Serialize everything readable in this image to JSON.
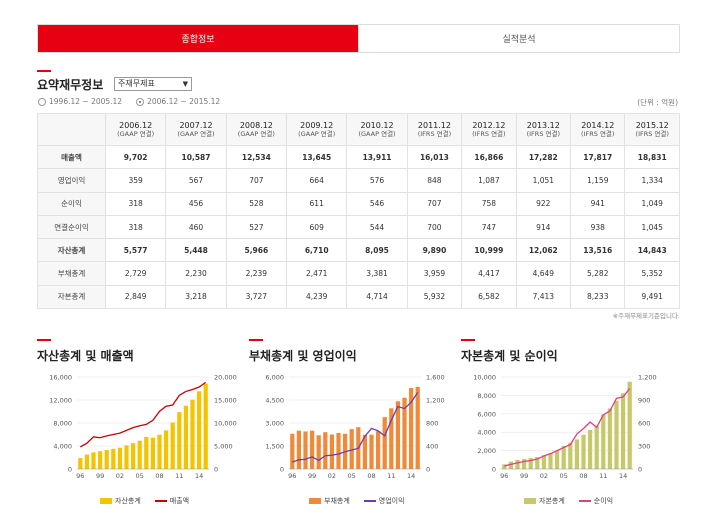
{
  "tabs": [
    {
      "label": "종합정보",
      "active": true
    },
    {
      "label": "실적분석",
      "active": false
    }
  ],
  "top_cut_text": "... ... ...",
  "summary": {
    "title": "요약재무정보",
    "select_value": "주재무제표",
    "radio_1": "1996.12 ~ 2005.12",
    "radio_2": "2006.12 ~ 2015.12",
    "radio_selected": 2,
    "unit": "(단위 : 억원)",
    "columns": [
      {
        "year": "2006.12",
        "std": "(GAAP 연결)"
      },
      {
        "year": "2007.12",
        "std": "(GAAP 연결)"
      },
      {
        "year": "2008.12",
        "std": "(GAAP 연결)"
      },
      {
        "year": "2009.12",
        "std": "(GAAP 연결)"
      },
      {
        "year": "2010.12",
        "std": "(GAAP 연결)"
      },
      {
        "year": "2011.12",
        "std": "(IFRS 연결)"
      },
      {
        "year": "2012.12",
        "std": "(IFRS 연결)"
      },
      {
        "year": "2013.12",
        "std": "(IFRS 연결)"
      },
      {
        "year": "2014.12",
        "std": "(IFRS 연결)"
      },
      {
        "year": "2015.12",
        "std": "(IFRS 연결)"
      }
    ],
    "rows": [
      {
        "label": "매출액",
        "bold": true,
        "values": [
          "9,702",
          "10,587",
          "12,534",
          "13,645",
          "13,911",
          "16,013",
          "16,866",
          "17,282",
          "17,817",
          "18,831"
        ]
      },
      {
        "label": "영업이익",
        "bold": false,
        "values": [
          "359",
          "567",
          "707",
          "664",
          "576",
          "848",
          "1,087",
          "1,051",
          "1,159",
          "1,334"
        ]
      },
      {
        "label": "순이익",
        "bold": false,
        "values": [
          "318",
          "456",
          "528",
          "611",
          "546",
          "707",
          "758",
          "922",
          "941",
          "1,049"
        ]
      },
      {
        "label": "연결순이익",
        "bold": false,
        "values": [
          "318",
          "460",
          "527",
          "609",
          "544",
          "700",
          "747",
          "914",
          "938",
          "1,045"
        ]
      },
      {
        "label": "자산총계",
        "bold": true,
        "values": [
          "5,577",
          "5,448",
          "5,966",
          "6,710",
          "8,095",
          "9,890",
          "10,999",
          "12,062",
          "13,516",
          "14,843"
        ]
      },
      {
        "label": "부채총계",
        "bold": false,
        "values": [
          "2,729",
          "2,230",
          "2,239",
          "2,471",
          "3,381",
          "3,959",
          "4,417",
          "4,649",
          "5,282",
          "5,352"
        ]
      },
      {
        "label": "자본총계",
        "bold": false,
        "values": [
          "2,849",
          "3,218",
          "3,727",
          "4,239",
          "4,714",
          "5,932",
          "6,582",
          "7,413",
          "8,233",
          "9,491"
        ]
      }
    ],
    "note": "※주재무제표기준입니다."
  },
  "chart_data": [
    {
      "type": "bar",
      "title": "자산총계 및 매출액",
      "x_ticks": [
        "96",
        "99",
        "02",
        "05",
        "08",
        "11",
        "14"
      ],
      "left_axis": {
        "ticks": [
          "0",
          "4,000",
          "8,000",
          "12,000",
          "16,000"
        ],
        "max": 16000
      },
      "right_axis": {
        "ticks": [
          "0",
          "5,000",
          "10,000",
          "15,000",
          "20,000"
        ],
        "max": 20000
      },
      "series": [
        {
          "name": "자산총계",
          "kind": "bar",
          "axis": "left",
          "color": "#f5c400",
          "values": [
            1900,
            2500,
            2900,
            3100,
            3300,
            3500,
            3700,
            4100,
            4500,
            4900,
            5577,
            5448,
            5966,
            6710,
            8095,
            9890,
            10999,
            12062,
            13516,
            14843
          ]
        },
        {
          "name": "매출액",
          "kind": "line",
          "axis": "right",
          "color": "#cc0000",
          "values": [
            4800,
            5600,
            7000,
            6800,
            7200,
            7500,
            7800,
            8400,
            9000,
            9400,
            9702,
            10587,
            12534,
            13645,
            13911,
            16013,
            16866,
            17282,
            17817,
            18831
          ]
        }
      ]
    },
    {
      "type": "bar",
      "title": "부채총계 및 영업이익",
      "x_ticks": [
        "96",
        "99",
        "02",
        "05",
        "08",
        "11",
        "14"
      ],
      "left_axis": {
        "ticks": [
          "0",
          "1,500",
          "3,000",
          "4,500",
          "6,000"
        ],
        "max": 6000
      },
      "right_axis": {
        "ticks": [
          "0",
          "400",
          "800",
          "1,200",
          "1,600"
        ],
        "max": 1600
      },
      "series": [
        {
          "name": "부채총계",
          "kind": "bar",
          "axis": "left",
          "color": "#f08a38",
          "values": [
            2300,
            2500,
            2450,
            2500,
            2200,
            2400,
            2250,
            2350,
            2300,
            2600,
            2729,
            2230,
            2239,
            2471,
            3381,
            3959,
            4417,
            4649,
            5282,
            5352
          ]
        },
        {
          "name": "영업이익",
          "kind": "line",
          "axis": "right",
          "color": "#6a3db0",
          "values": [
            120,
            160,
            170,
            210,
            150,
            230,
            240,
            260,
            300,
            330,
            359,
            567,
            707,
            664,
            576,
            848,
            1087,
            1051,
            1159,
            1334
          ]
        }
      ]
    },
    {
      "type": "bar",
      "title": "자본총계 및 순이익",
      "x_ticks": [
        "96",
        "99",
        "02",
        "05",
        "08",
        "11",
        "14"
      ],
      "left_axis": {
        "ticks": [
          "0",
          "2,000",
          "4,000",
          "6,000",
          "8,000",
          "10,000"
        ],
        "max": 10000
      },
      "right_axis": {
        "ticks": [
          "0",
          "300",
          "600",
          "900",
          "1,200"
        ],
        "max": 1200
      },
      "series": [
        {
          "name": "자본총계",
          "kind": "bar",
          "axis": "left",
          "color": "#c6c86a",
          "values": [
            500,
            800,
            1000,
            1100,
            1200,
            1300,
            1500,
            1700,
            2000,
            2500,
            2849,
            3218,
            3727,
            4239,
            4714,
            5932,
            6582,
            7413,
            8233,
            9491
          ]
        },
        {
          "name": "순이익",
          "kind": "line",
          "axis": "right",
          "color": "#e0407f",
          "values": [
            40,
            60,
            80,
            100,
            110,
            130,
            170,
            200,
            240,
            280,
            318,
            456,
            528,
            611,
            546,
            707,
            758,
            922,
            941,
            1049
          ]
        }
      ]
    }
  ]
}
